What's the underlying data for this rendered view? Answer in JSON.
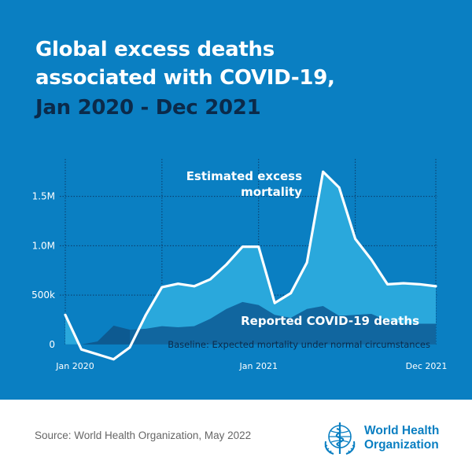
{
  "title": {
    "line1": "Global excess deaths",
    "line2": "associated with COVID-19,",
    "line3": "Jan 2020 - Dec 2021"
  },
  "colors": {
    "background": "#0a7fc2",
    "excess_area": "#2aa8dc",
    "reported_area": "#11669f",
    "reported_early": "#0d5a91",
    "line": "#ffffff",
    "subtitle": "#0b2a4a"
  },
  "chart_data": {
    "type": "area",
    "title": "Global excess deaths associated with COVID-19, Jan 2020 - Dec 2021",
    "y_unit": "monthly deaths",
    "ylim": [
      -200000,
      1800000
    ],
    "xlim": [
      0,
      23
    ],
    "y_ticks": [
      {
        "value": 0,
        "label": "0"
      },
      {
        "value": 500000,
        "label": "500k"
      },
      {
        "value": 1000000,
        "label": "1.0M"
      },
      {
        "value": 1500000,
        "label": "1.5M"
      }
    ],
    "x_ticks": [
      {
        "index": 1,
        "label": "Jan 2020"
      },
      {
        "index": 12,
        "label": "Jan 2021"
      },
      {
        "index": 23,
        "label": "Dec 2021"
      }
    ],
    "x_gridlines": [
      0,
      6,
      12,
      18,
      23
    ],
    "grid": true,
    "categories": [
      "Jan 2020",
      "Feb 2020",
      "Mar 2020",
      "Apr 2020",
      "May 2020",
      "Jun 2020",
      "Jul 2020",
      "Aug 2020",
      "Sep 2020",
      "Oct 2020",
      "Nov 2020",
      "Dec 2020",
      "Jan 2021",
      "Feb 2021",
      "Mar 2021",
      "Apr 2021",
      "May 2021",
      "Jun 2021",
      "Jul 2021",
      "Aug 2021",
      "Sep 2021",
      "Oct 2021",
      "Nov 2021",
      "Dec 2021"
    ],
    "series": [
      {
        "name": "Estimated excess mortality",
        "label_lines": [
          "Estimated excess",
          "mortality"
        ],
        "type": "line-area",
        "x": [
          0,
          1,
          2,
          3,
          4,
          5,
          6,
          7,
          8,
          9,
          10,
          11,
          12,
          13,
          14,
          15,
          16,
          17,
          18,
          19,
          20,
          21,
          22,
          23
        ],
        "values": [
          300000,
          -50000,
          -100000,
          -150000,
          -30000,
          300000,
          580000,
          615000,
          590000,
          660000,
          810000,
          990000,
          990000,
          420000,
          520000,
          830000,
          1750000,
          1590000,
          1070000,
          860000,
          610000,
          620000,
          610000,
          590000
        ]
      },
      {
        "name": "Reported COVID-19 deaths",
        "type": "area",
        "x": [
          0,
          1,
          2,
          3,
          4,
          5,
          6,
          7,
          8,
          9,
          10,
          11,
          12,
          13,
          14,
          15,
          16,
          17,
          18,
          19,
          20,
          21,
          22,
          23
        ],
        "values": [
          0,
          0,
          30000,
          190000,
          150000,
          160000,
          185000,
          175000,
          185000,
          260000,
          360000,
          430000,
          400000,
          300000,
          270000,
          360000,
          390000,
          290000,
          300000,
          310000,
          240000,
          210000,
          210000,
          210000
        ]
      }
    ],
    "baseline_label": "Baseline: Expected mortality under normal circumstances"
  },
  "footer": {
    "source": "Source: World Health Organization, May 2022",
    "logo_line1": "World Health",
    "logo_line2": "Organization",
    "logo_name": "who-emblem-icon"
  }
}
